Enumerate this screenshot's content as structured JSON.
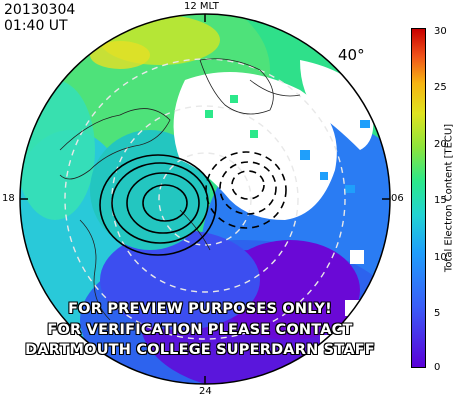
{
  "header": {
    "date": "20130304",
    "time": "01:40 UT"
  },
  "map": {
    "mlt_labels": {
      "top": "12 MLT",
      "left": "18",
      "right": "06",
      "bottom": "24"
    },
    "latitude_label": "40°",
    "projection": "polar, magnetic local time",
    "contour_styles": [
      "solid",
      "dashed"
    ]
  },
  "watermark": {
    "line1": "FOR PREVIEW PURPOSES ONLY!",
    "line2": "FOR VERIFICATION PLEASE CONTACT",
    "line3": "DARTMOUTH COLLEGE SUPERDARN STAFF"
  },
  "colorbar": {
    "label": "Total Electron Content [TECU]",
    "ticks": [
      "30",
      "25",
      "20",
      "15",
      "10",
      "5",
      "0"
    ],
    "min": 0,
    "max": 30,
    "colors": [
      "#5a00d8",
      "#3a5ef8",
      "#1f9ffb",
      "#22d3d3",
      "#2ce88a",
      "#8de43c",
      "#dfe31f",
      "#f6b413",
      "#f0531a",
      "#c80000"
    ]
  }
}
